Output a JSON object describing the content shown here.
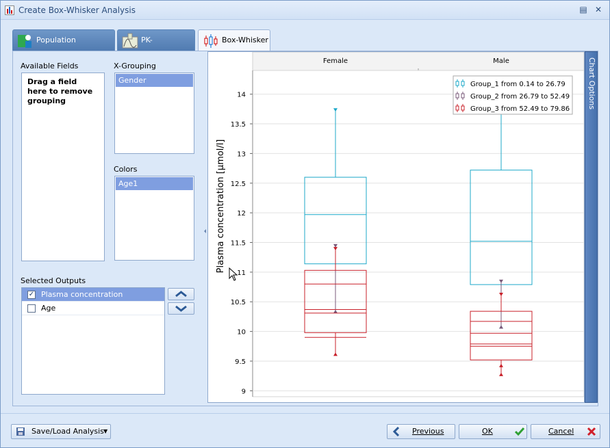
{
  "window": {
    "title": "Create Box-Whisker Analysis"
  },
  "tabs": [
    {
      "label": "Population Parameters",
      "active": false
    },
    {
      "label": "PK-Parameters",
      "active": false
    },
    {
      "label": "Box-Whisker",
      "active": true
    }
  ],
  "fields": {
    "available_label": "Available Fields",
    "available_hint": "Drag a field here to remove grouping",
    "xgrouping_label": "X-Grouping",
    "xgrouping_items": [
      "Gender"
    ],
    "colors_label": "Colors",
    "colors_items": [
      "Age1"
    ]
  },
  "outputs": {
    "label": "Selected Outputs",
    "items": [
      {
        "label": "Plasma concentration",
        "checked": true,
        "selected": true
      },
      {
        "label": "Age",
        "checked": false,
        "selected": false
      }
    ]
  },
  "chart_options_label": "Chart Options",
  "chart_data": {
    "type": "box",
    "categories": [
      "Female",
      "Male"
    ],
    "ylabel": "Plasma concentration [µmol/l]",
    "ylim": [
      8.9,
      14.4
    ],
    "yticks": [
      9,
      9.5,
      10,
      10.5,
      11,
      11.5,
      12,
      12.5,
      13,
      13.5,
      14
    ],
    "ytick_labels": [
      "9",
      "9.5",
      "10",
      "10.5",
      "11",
      "11.5",
      "12",
      "12.5",
      "13",
      "13.5",
      "14"
    ],
    "legend_position": "top-right",
    "series": [
      {
        "name": "Group_1 from 0.14 to 26.79",
        "color": "#1ca8c9",
        "boxes": [
          {
            "category": "Female",
            "min": 10.33,
            "q1": 11.14,
            "median": 11.97,
            "q3": 12.6,
            "max": 13.74
          },
          {
            "category": "Male",
            "min": 10.07,
            "q1": 10.79,
            "median": 11.52,
            "q3": 12.72,
            "max": 13.7
          }
        ]
      },
      {
        "name": "Group_2 from 26.79 to 52.49",
        "color": "#7a5a7a",
        "boxes": [
          {
            "category": "Female",
            "min": 10.33,
            "q1": 10.72,
            "median": 10.72,
            "q3": 10.72,
            "max": 11.45
          },
          {
            "category": "Male",
            "min": 10.07,
            "q1": 10.07,
            "median": 10.07,
            "q3": 10.07,
            "max": 10.85
          }
        ]
      },
      {
        "name": "Group_3 from 52.49 to 79.86",
        "color": "#c8202a",
        "boxes": [
          {
            "category": "Female",
            "min": 9.61,
            "q1": 9.98,
            "median": 10.37,
            "q3": 11.03,
            "max": 11.4
          },
          {
            "category": "Male",
            "min": 9.27,
            "q1": 9.52,
            "median": 9.97,
            "q3": 10.34,
            "max": 10.63
          }
        ]
      }
    ],
    "extra_lines": [
      {
        "category": "Female",
        "values": [
          10.8,
          10.31,
          9.9
        ],
        "color": "#c8202a"
      },
      {
        "category": "Male",
        "values": [
          10.17,
          9.79,
          9.75,
          9.42
        ],
        "color": "#c8202a"
      }
    ]
  },
  "bottom": {
    "save_load": "Save/Load Analysis",
    "previous": "Previous",
    "ok": "OK",
    "cancel": "Cancel"
  }
}
